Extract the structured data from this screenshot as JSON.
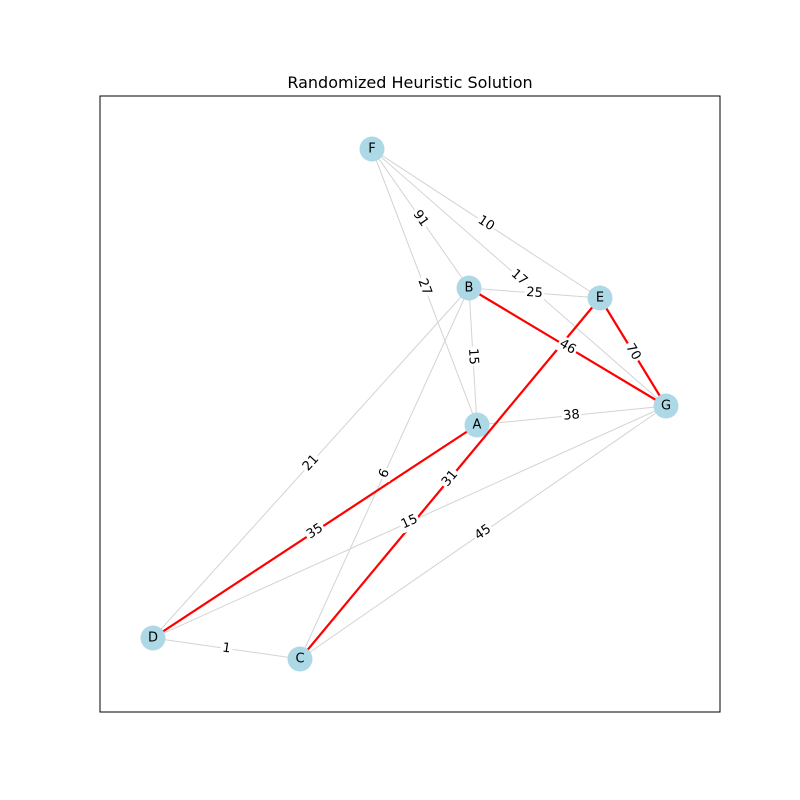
{
  "title": "Randomized Heuristic Solution",
  "colors": {
    "node_fill": "#add8e6",
    "edge_default": "#d3d3d3",
    "edge_highlight": "#ff0000",
    "frame": "#000000"
  },
  "nodes": [
    {
      "id": "F",
      "label": "F"
    },
    {
      "id": "B",
      "label": "B"
    },
    {
      "id": "E",
      "label": "E"
    },
    {
      "id": "G",
      "label": "G"
    },
    {
      "id": "A",
      "label": "A"
    },
    {
      "id": "D",
      "label": "D"
    },
    {
      "id": "C",
      "label": "C"
    }
  ],
  "edges": [
    {
      "source": "F",
      "target": "E",
      "weight": "10",
      "highlighted": false
    },
    {
      "source": "F",
      "target": "B",
      "weight": "91",
      "highlighted": false
    },
    {
      "source": "F",
      "target": "A",
      "weight": "27",
      "highlighted": false
    },
    {
      "source": "F",
      "target": "G",
      "weight": "17",
      "highlighted": false
    },
    {
      "source": "B",
      "target": "E",
      "weight": "25",
      "highlighted": false
    },
    {
      "source": "B",
      "target": "A",
      "weight": "15",
      "highlighted": false
    },
    {
      "source": "B",
      "target": "D",
      "weight": "21",
      "highlighted": false
    },
    {
      "source": "B",
      "target": "C",
      "weight": "6",
      "highlighted": false
    },
    {
      "source": "A",
      "target": "G",
      "weight": "38",
      "highlighted": false
    },
    {
      "source": "D",
      "target": "G",
      "weight": "15",
      "highlighted": false
    },
    {
      "source": "C",
      "target": "G",
      "weight": "45",
      "highlighted": false
    },
    {
      "source": "D",
      "target": "C",
      "weight": "1",
      "highlighted": false
    },
    {
      "source": "B",
      "target": "G",
      "weight": "46",
      "highlighted": true
    },
    {
      "source": "E",
      "target": "G",
      "weight": "70",
      "highlighted": true
    },
    {
      "source": "A",
      "target": "D",
      "weight": "35",
      "highlighted": true
    },
    {
      "source": "E",
      "target": "C",
      "weight": "31",
      "highlighted": true
    }
  ]
}
